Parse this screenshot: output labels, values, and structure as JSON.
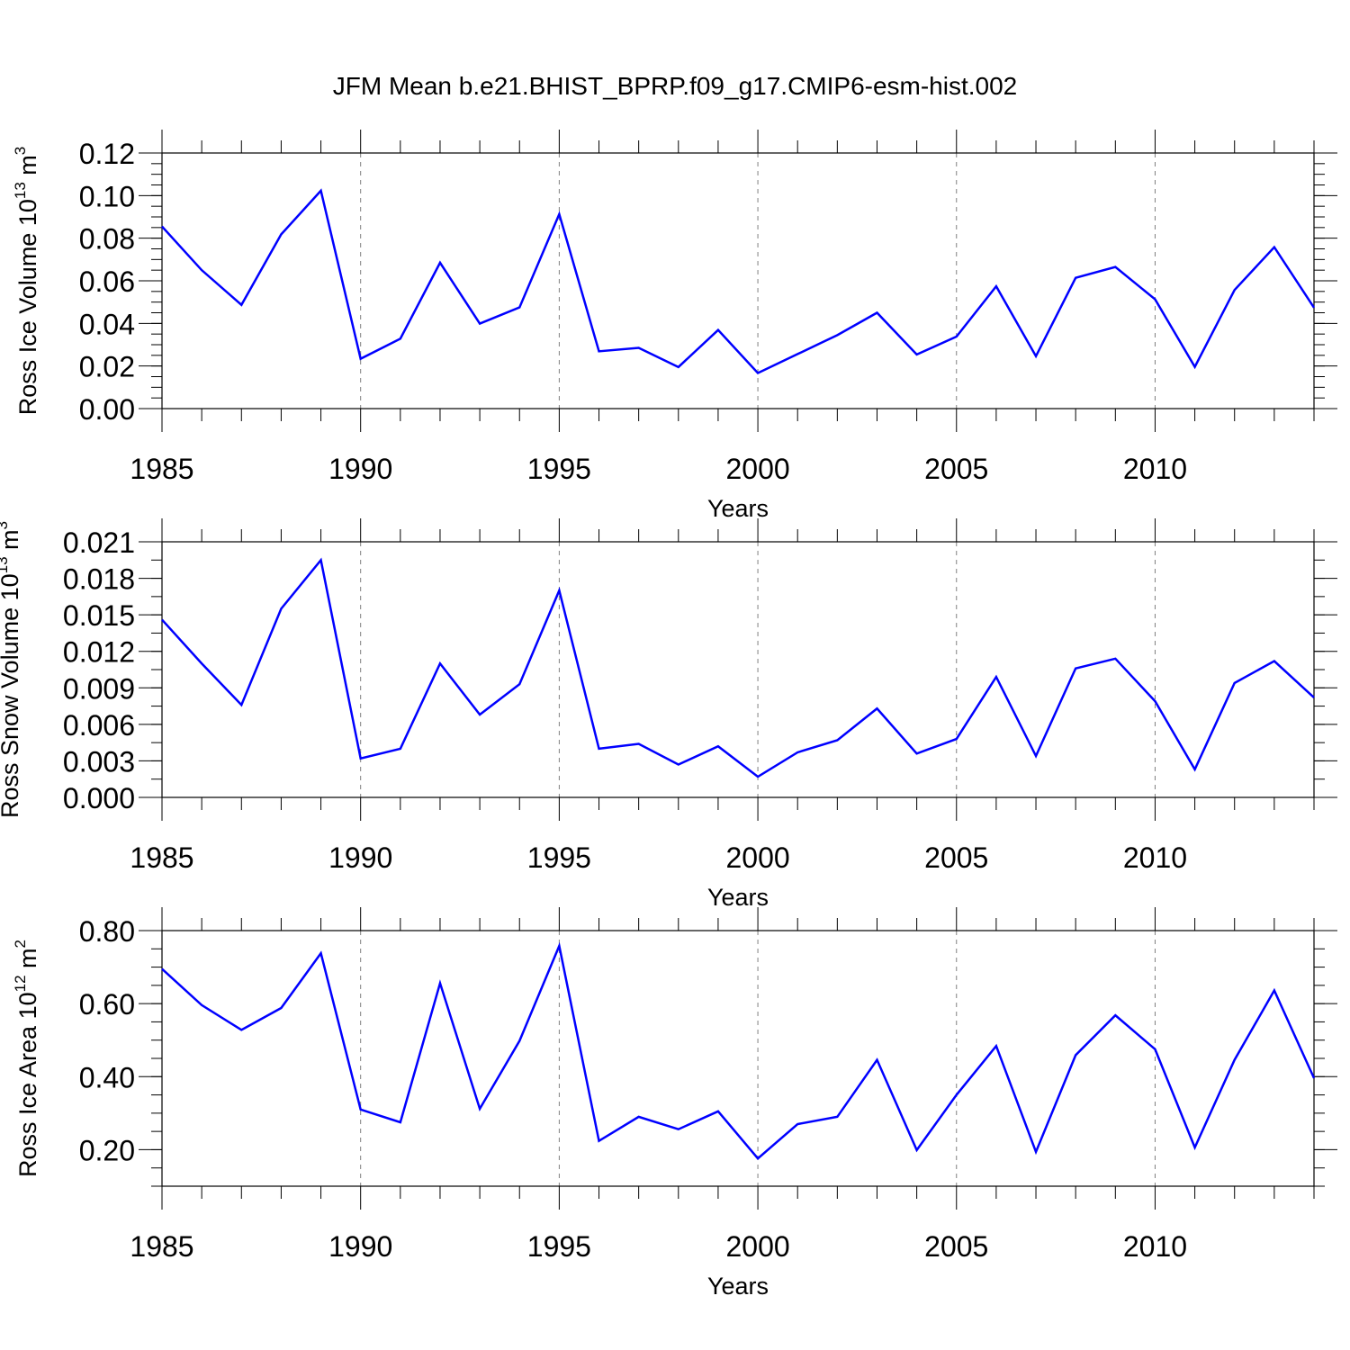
{
  "title": "JFM Mean b.e21.BHIST_BPRP.f09_g17.CMIP6-esm-hist.002",
  "chart_data": [
    {
      "type": "line",
      "ylabel": "Ross Ice Volume 10",
      "ylabel_exp": "13",
      "ylabel_unit": "m",
      "ylabel_unit_exp": "3",
      "xlabel": "Years",
      "xlim": [
        1985,
        2014
      ],
      "ylim": [
        0.0,
        0.12
      ],
      "yticks": [
        "0.00",
        "0.02",
        "0.04",
        "0.06",
        "0.08",
        "0.10",
        "0.12"
      ],
      "xticks": [
        "1985",
        "1990",
        "1995",
        "2000",
        "2005",
        "2010"
      ],
      "line_color": "#0000ff",
      "x": [
        1985,
        1986,
        1987,
        1988,
        1989,
        1990,
        1991,
        1992,
        1993,
        1994,
        1995,
        1996,
        1997,
        1998,
        1999,
        2000,
        2001,
        2002,
        2003,
        2004,
        2005,
        2006,
        2007,
        2008,
        2009,
        2010,
        2011,
        2012,
        2013,
        2014
      ],
      "values": [
        0.0855,
        0.065,
        0.0487,
        0.0818,
        0.1023,
        0.0234,
        0.0328,
        0.0685,
        0.0399,
        0.0475,
        0.0913,
        0.0269,
        0.0285,
        0.0195,
        0.0369,
        0.0167,
        0.0256,
        0.0345,
        0.045,
        0.0254,
        0.0338,
        0.0574,
        0.0246,
        0.0614,
        0.0665,
        0.0513,
        0.0196,
        0.0557,
        0.0758,
        0.0474
      ]
    },
    {
      "type": "line",
      "ylabel": "Ross Snow Volume 10",
      "ylabel_exp": "13",
      "ylabel_unit": "m",
      "ylabel_unit_exp": "3",
      "xlabel": "Years",
      "xlim": [
        1985,
        2014
      ],
      "ylim": [
        0.0,
        0.021
      ],
      "yticks": [
        "0.000",
        "0.003",
        "0.006",
        "0.009",
        "0.012",
        "0.015",
        "0.018",
        "0.021"
      ],
      "xticks": [
        "1985",
        "1990",
        "1995",
        "2000",
        "2005",
        "2010"
      ],
      "line_color": "#0000ff",
      "x": [
        1985,
        1986,
        1987,
        1988,
        1989,
        1990,
        1991,
        1992,
        1993,
        1994,
        1995,
        1996,
        1997,
        1998,
        1999,
        2000,
        2001,
        2002,
        2003,
        2004,
        2005,
        2006,
        2007,
        2008,
        2009,
        2010,
        2011,
        2012,
        2013,
        2014
      ],
      "values": [
        0.0146,
        0.011,
        0.0076,
        0.0155,
        0.0195,
        0.0032,
        0.004,
        0.011,
        0.0068,
        0.0093,
        0.017,
        0.004,
        0.0044,
        0.0027,
        0.0042,
        0.0017,
        0.0037,
        0.0047,
        0.0073,
        0.0036,
        0.0048,
        0.0099,
        0.0034,
        0.0106,
        0.0114,
        0.0079,
        0.0023,
        0.0094,
        0.0112,
        0.0082
      ]
    },
    {
      "type": "line",
      "ylabel": "Ross Ice Area 10",
      "ylabel_exp": "12",
      "ylabel_unit": "m",
      "ylabel_unit_exp": "2",
      "xlabel": "Years",
      "xlim": [
        1985,
        2014
      ],
      "ylim": [
        0.1,
        0.8
      ],
      "yticks": [
        "0.20",
        "0.40",
        "0.60",
        "0.80"
      ],
      "xticks": [
        "1985",
        "1990",
        "1995",
        "2000",
        "2005",
        "2010"
      ],
      "line_color": "#0000ff",
      "x": [
        1985,
        1986,
        1987,
        1988,
        1989,
        1990,
        1991,
        1992,
        1993,
        1994,
        1995,
        1996,
        1997,
        1998,
        1999,
        2000,
        2001,
        2002,
        2003,
        2004,
        2005,
        2006,
        2007,
        2008,
        2009,
        2010,
        2011,
        2012,
        2013,
        2014
      ],
      "values": [
        0.695,
        0.596,
        0.528,
        0.588,
        0.738,
        0.31,
        0.275,
        0.656,
        0.312,
        0.498,
        0.758,
        0.224,
        0.29,
        0.256,
        0.305,
        0.176,
        0.27,
        0.29,
        0.446,
        0.199,
        0.35,
        0.484,
        0.194,
        0.459,
        0.568,
        0.475,
        0.206,
        0.446,
        0.636,
        0.396
      ]
    }
  ]
}
